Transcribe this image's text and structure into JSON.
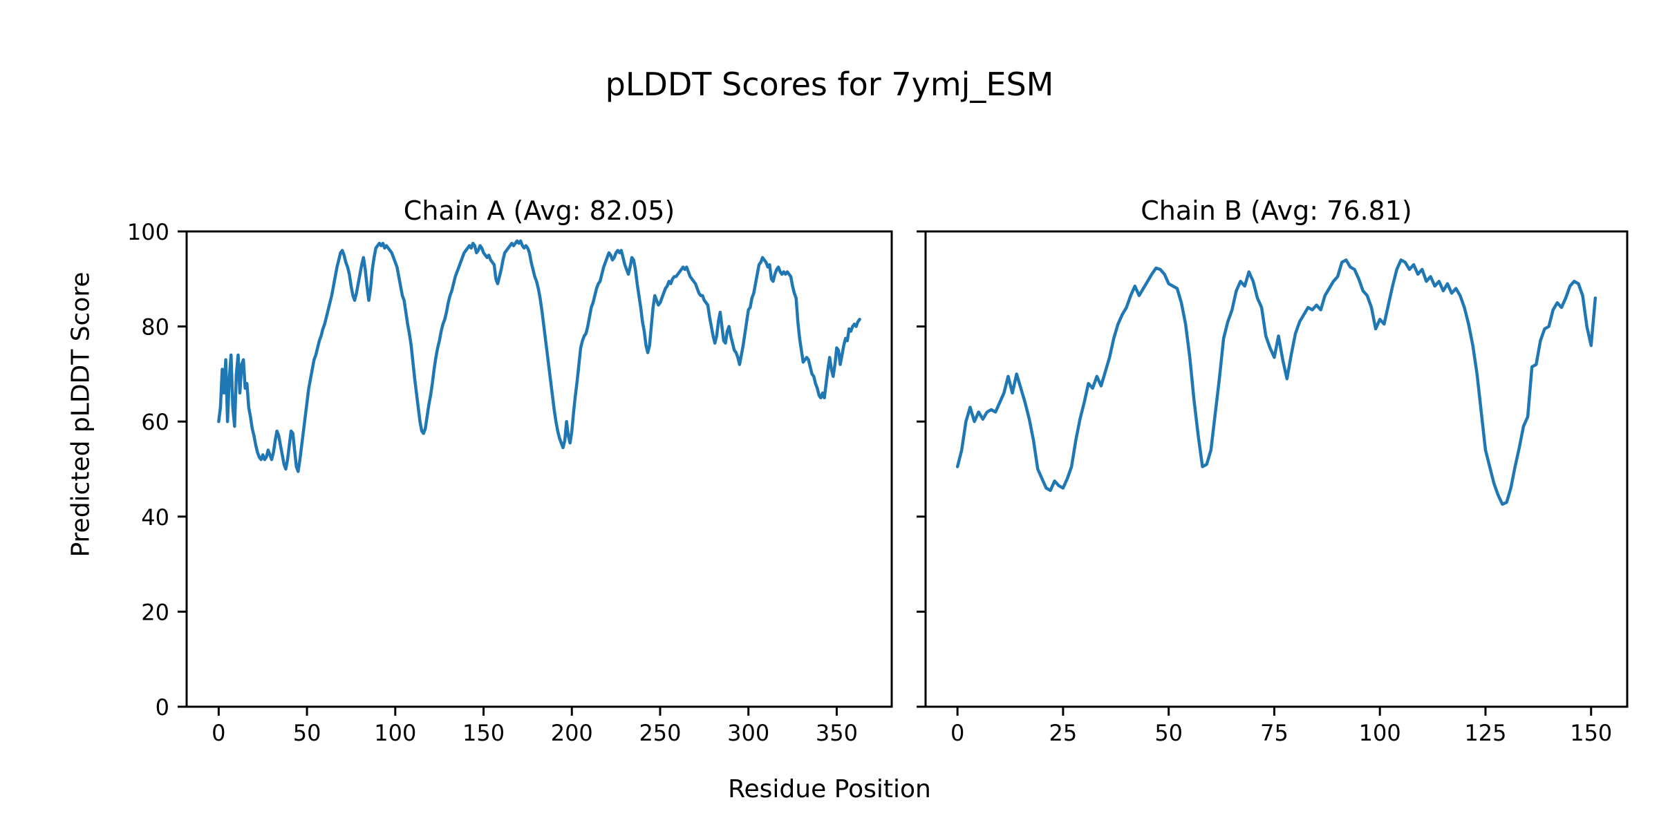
{
  "figure": {
    "title": "pLDDT Scores for 7ymj_ESM",
    "xlabel": "Residue Position",
    "ylabel": "Predicted pLDDT Score",
    "background_color": "#ffffff",
    "line_color": "#1f77b4",
    "text_color": "#000000"
  },
  "chart_data": [
    {
      "type": "line",
      "title": "Chain A (Avg: 82.05)",
      "average": 82.05,
      "ylim": [
        0,
        100
      ],
      "x_range": [
        0,
        363
      ],
      "xticks": [
        0,
        50,
        100,
        150,
        200,
        250,
        300,
        350
      ],
      "yticks": [
        0,
        20,
        40,
        60,
        80,
        100
      ],
      "grid": false,
      "values": [
        60,
        63,
        71,
        66,
        73,
        60,
        69,
        74,
        63,
        59,
        70,
        74,
        66,
        72,
        73,
        67,
        68,
        63,
        61,
        58.5,
        57,
        55,
        53.5,
        52.5,
        52,
        53,
        52,
        52.5,
        54,
        53,
        52,
        53.5,
        56,
        58,
        57,
        55,
        53,
        51,
        50,
        52,
        55,
        58,
        57.5,
        54,
        50.5,
        49.5,
        52,
        55,
        58,
        61,
        64,
        67,
        69,
        71,
        73,
        74,
        75.5,
        77,
        78,
        79.5,
        80.5,
        82,
        83.5,
        85,
        86.5,
        88.5,
        90.5,
        92.5,
        94,
        95.5,
        96,
        95,
        93.5,
        92.5,
        91,
        88.5,
        86.5,
        85.5,
        87,
        89,
        91,
        93,
        94.5,
        92,
        88.5,
        85.5,
        88,
        92,
        94.5,
        96.5,
        97,
        97.5,
        97,
        97.5,
        96.5,
        97,
        96.5,
        96,
        95.5,
        94.5,
        93.5,
        92.5,
        90.5,
        88.5,
        86.5,
        85.5,
        83,
        80.5,
        78.5,
        76,
        72.5,
        69,
        66,
        63,
        60,
        58,
        57.5,
        58.5,
        61,
        63.5,
        65.5,
        68,
        71,
        73.5,
        75.5,
        77,
        79,
        80.5,
        81.5,
        83,
        85,
        86.5,
        87.5,
        89,
        90.5,
        91.5,
        92.5,
        93.5,
        94.5,
        95.5,
        96,
        96.5,
        97,
        96.5,
        97.5,
        97,
        95.5,
        96,
        97,
        96.5,
        95.5,
        95,
        94.5,
        95,
        94,
        93.5,
        93,
        90,
        89,
        90.5,
        92,
        94,
        95.5,
        96,
        96.5,
        97,
        97.5,
        97,
        97.5,
        98,
        97.5,
        98,
        97,
        96.5,
        97,
        96.5,
        95.5,
        93.5,
        92,
        90.5,
        89.5,
        88,
        86,
        83.5,
        80.5,
        77.5,
        74.5,
        71.5,
        68.5,
        65.5,
        62.5,
        60,
        58,
        56.5,
        55.5,
        54.5,
        56,
        60,
        57,
        55.5,
        58,
        62,
        65.5,
        68.5,
        72,
        75.5,
        77,
        78,
        78.5,
        80,
        82,
        84,
        85,
        86.5,
        88,
        89,
        89.5,
        91,
        92.5,
        93.5,
        94.5,
        95.5,
        95,
        94,
        94.5,
        95.5,
        96,
        95.5,
        96,
        94.5,
        93,
        92,
        91,
        92.5,
        94.5,
        94,
        92,
        89,
        86.5,
        84,
        81,
        79,
        76,
        74.5,
        76,
        80,
        84,
        86.5,
        85.5,
        84.5,
        85,
        86,
        87,
        88,
        88.5,
        89.5,
        89,
        90,
        90.5,
        90.5,
        91,
        91.5,
        92,
        92.5,
        92,
        92.5,
        91.5,
        90.5,
        90,
        89.5,
        89,
        88,
        87,
        86.5,
        86.5,
        85.5,
        85,
        84.5,
        82,
        80,
        78,
        76.5,
        78,
        81,
        83,
        80,
        77,
        76.5,
        79,
        80,
        78,
        76.5,
        75,
        74.5,
        73.5,
        72,
        74,
        76,
        78.5,
        81,
        83.5,
        84,
        86,
        87,
        89,
        91,
        93,
        93.5,
        94.5,
        94,
        93.5,
        92.5,
        93,
        90,
        89.5,
        91,
        92,
        92.5,
        91.5,
        91,
        91.5,
        91,
        91.5,
        91,
        90.5,
        88.5,
        87,
        86,
        81,
        77.5,
        75,
        72.5,
        73,
        73.5,
        73,
        71.5,
        70,
        69.5,
        68,
        67,
        65.5,
        65,
        66,
        65,
        68,
        71,
        73.5,
        71,
        69.5,
        72,
        75.5,
        75,
        72,
        74,
        76,
        77.5,
        77,
        79.5,
        79,
        80,
        80.5,
        80,
        81,
        81.5
      ]
    },
    {
      "type": "line",
      "title": "Chain B (Avg: 76.81)",
      "average": 76.81,
      "ylim": [
        0,
        100
      ],
      "x_range": [
        0,
        151
      ],
      "xticks": [
        0,
        25,
        50,
        75,
        100,
        125,
        150
      ],
      "yticks": [
        0,
        20,
        40,
        60,
        80,
        100
      ],
      "grid": false,
      "values": [
        50.5,
        54,
        60,
        63,
        60,
        62,
        60.5,
        62,
        62.5,
        62,
        64,
        66,
        69.5,
        66,
        70,
        67,
        64,
        60.5,
        56,
        50,
        48,
        46,
        45.5,
        47.5,
        46.5,
        46,
        48,
        50.5,
        56,
        60.5,
        64,
        68,
        67,
        69.5,
        67.5,
        70.5,
        73.5,
        77.5,
        80.5,
        82.5,
        84,
        86.5,
        88.5,
        86.5,
        88,
        89.5,
        91,
        92.3,
        92,
        91,
        89,
        88.5,
        88,
        85,
        80.5,
        73.5,
        64.5,
        57,
        50.5,
        51,
        54,
        61.5,
        69,
        77.5,
        81,
        83.5,
        87.5,
        89.5,
        88.5,
        91.5,
        89.5,
        86,
        84,
        78,
        75.5,
        73.5,
        78,
        73,
        69,
        74,
        78.5,
        81,
        82.5,
        84,
        83.5,
        84.5,
        83.5,
        86.5,
        88,
        89.5,
        90.5,
        93.5,
        94,
        92.5,
        92,
        90,
        87.5,
        86.5,
        84,
        79.5,
        81.5,
        80.5,
        84.5,
        88.5,
        92,
        94,
        93.5,
        92,
        93,
        91,
        92,
        89.5,
        90.5,
        88.5,
        89.5,
        87.5,
        89,
        87,
        88,
        86.5,
        84,
        80.5,
        76,
        70,
        62,
        54,
        50.5,
        47,
        44.5,
        42.6,
        43,
        46,
        50.5,
        54.5,
        59,
        61,
        71.5,
        72,
        77,
        79.5,
        80,
        83.5,
        85,
        84,
        86,
        88.5,
        89.5,
        89,
        86.5,
        80,
        76,
        86
      ]
    }
  ]
}
